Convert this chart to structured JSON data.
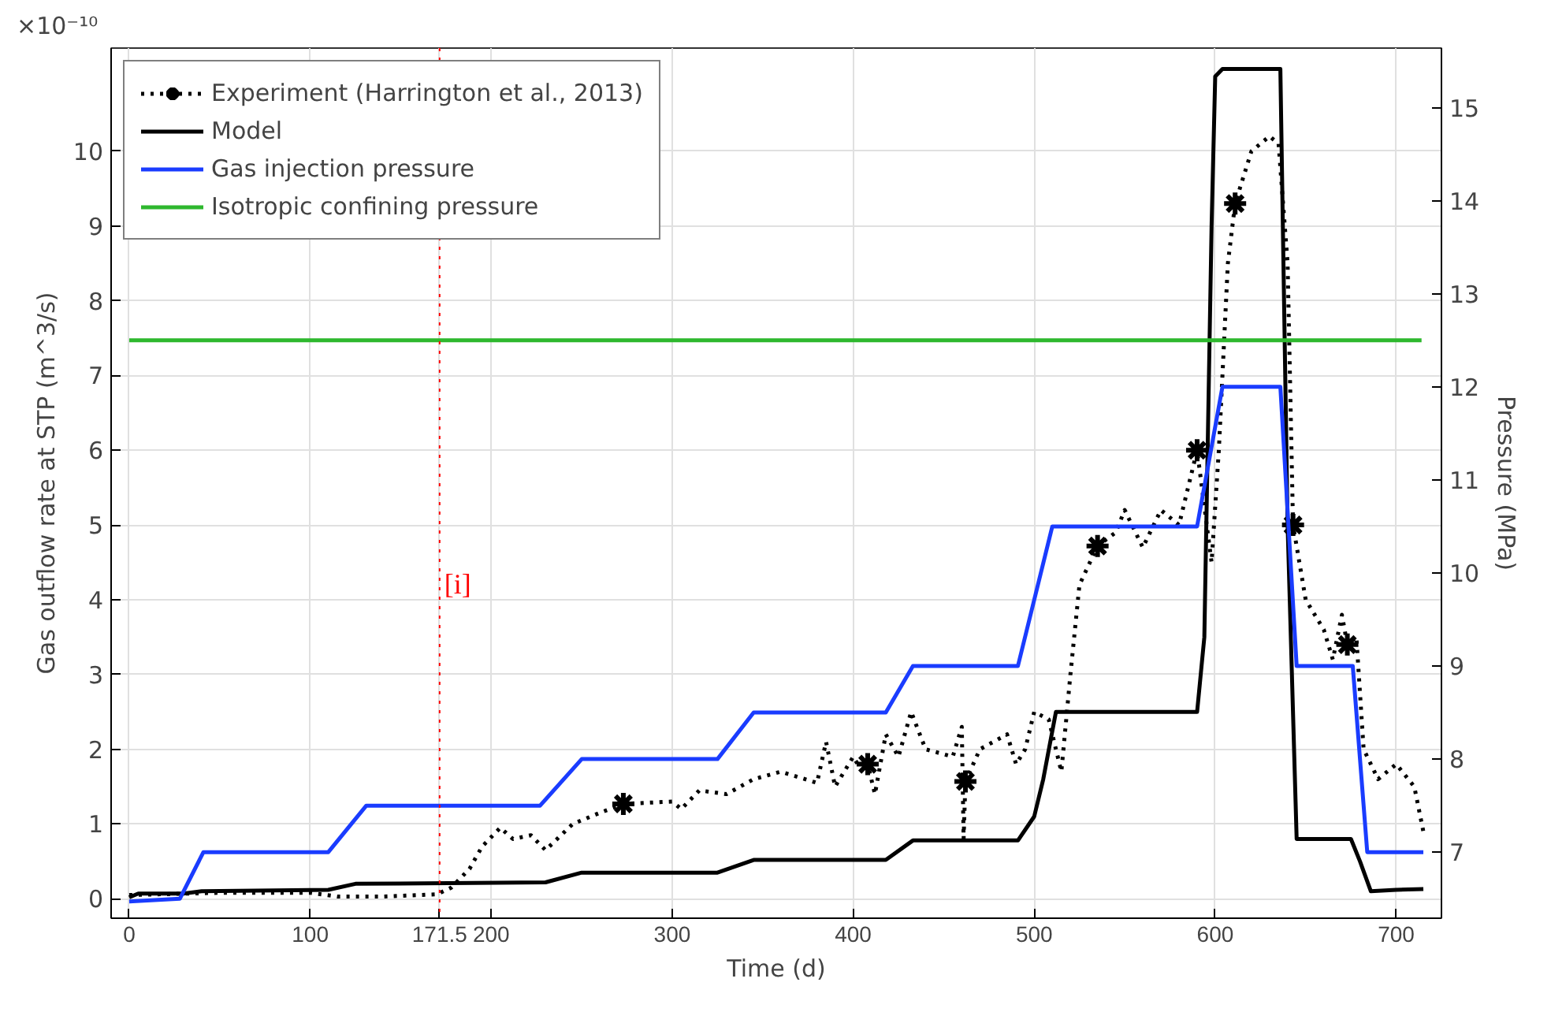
{
  "chart_data": {
    "type": "line",
    "xlabel": "Time (d)",
    "ylabel": "Gas outflow rate at STP (m^3/s)",
    "y2label": "Pressure (MPa)",
    "annotations": [
      "×10⁻¹⁰"
    ],
    "xlim": [
      -10,
      725
    ],
    "ylim": [
      -0.26,
      11.38
    ],
    "y2lim": [
      6.29,
      15.64
    ],
    "xticks": [
      0,
      100,
      {
        "value": 171.5,
        "label": "171.5"
      },
      200,
      300,
      400,
      500,
      600,
      700
    ],
    "yticks": [
      0,
      1,
      2,
      3,
      4,
      5,
      6,
      7,
      8,
      9,
      10
    ],
    "y2ticks": [
      7,
      8,
      9,
      10,
      11,
      12,
      13,
      14,
      15
    ],
    "grid": true,
    "legend": "top left",
    "ref_lines": [
      {
        "axis": "x",
        "value": 171.5,
        "label": "[i]",
        "color": "#ff0000",
        "line_style": "dotted"
      }
    ],
    "series": [
      {
        "name": "Experiment (Harrington et al., 2013)",
        "color": "#000000",
        "line_style": "dotted",
        "x": [
          0,
          50,
          100,
          115,
          140,
          170,
          178,
          188,
          195,
          205,
          212,
          222,
          230,
          245,
          260,
          273,
          300,
          305,
          315,
          330,
          345,
          360,
          380,
          385,
          390,
          400,
          405,
          408,
          412,
          418,
          425,
          432,
          440,
          455,
          460,
          461,
          462,
          470,
          485,
          490,
          495,
          500,
          508,
          515,
          520,
          525,
          535,
          545,
          550,
          560,
          570,
          580,
          590,
          598,
          602,
          607,
          611,
          620,
          630,
          635,
          640,
          643,
          650,
          660,
          665,
          670,
          673,
          678,
          682,
          690,
          700,
          710,
          715
        ],
        "values": [
          0.05,
          0.08,
          0.08,
          0.03,
          0.03,
          0.06,
          0.15,
          0.4,
          0.7,
          0.95,
          0.8,
          0.85,
          0.65,
          1.0,
          1.15,
          1.27,
          1.3,
          1.2,
          1.45,
          1.4,
          1.6,
          1.7,
          1.55,
          2.1,
          1.5,
          1.9,
          1.7,
          1.8,
          1.4,
          2.2,
          1.9,
          2.5,
          2.0,
          1.9,
          2.3,
          0.8,
          1.57,
          2.0,
          2.2,
          1.8,
          2.0,
          2.5,
          2.4,
          1.7,
          3.0,
          4.2,
          4.72,
          4.9,
          5.2,
          4.7,
          5.2,
          5.0,
          6.0,
          4.5,
          6.0,
          8.5,
          9.3,
          10.0,
          10.2,
          10.1,
          8.5,
          5.0,
          4.0,
          3.6,
          3.2,
          3.8,
          3.4,
          3.5,
          2.0,
          1.6,
          1.8,
          1.5,
          0.9
        ]
      },
      {
        "type": "scatter",
        "marker": "cross",
        "color": "#000000",
        "x": [
          273,
          408,
          462,
          535,
          590,
          611,
          643,
          673
        ],
        "values": [
          1.27,
          1.8,
          1.57,
          4.72,
          6.0,
          9.3,
          5.0,
          3.4
        ]
      },
      {
        "name": "Model",
        "color": "#000000",
        "line_style": "solid",
        "x": [
          0,
          5,
          30,
          40,
          110,
          125,
          230,
          250,
          325,
          345,
          400,
          418,
          433,
          491,
          500,
          505,
          512,
          590,
          594,
          598,
          600,
          604,
          636,
          640,
          645,
          675,
          680,
          686,
          700,
          715
        ],
        "values": [
          0.02,
          0.07,
          0.07,
          0.1,
          0.12,
          0.2,
          0.22,
          0.35,
          0.35,
          0.52,
          0.52,
          0.52,
          0.78,
          0.78,
          1.1,
          1.6,
          2.5,
          2.5,
          3.5,
          9.0,
          11.0,
          11.1,
          11.1,
          5.0,
          0.8,
          0.8,
          0.5,
          0.1,
          0.12,
          0.13
        ]
      },
      {
        "name": "Gas injection pressure",
        "color": "#1a3cff",
        "line_style": "solid",
        "axis": "y2",
        "x": [
          0,
          28,
          41,
          110,
          131,
          227,
          250,
          325,
          345,
          418,
          433,
          491,
          510,
          590,
          604,
          636,
          645,
          676,
          684,
          715
        ],
        "values": [
          6.47,
          6.5,
          7.0,
          7.0,
          7.5,
          7.5,
          8.0,
          8.0,
          8.5,
          8.5,
          9.0,
          9.0,
          10.5,
          10.5,
          12.0,
          12.0,
          9.0,
          9.0,
          7.0,
          7.0
        ]
      },
      {
        "name": "Isotropic confining pressure",
        "color": "#2eb82e",
        "line_style": "solid",
        "axis": "y2",
        "x": [
          0,
          714
        ],
        "values": [
          12.5,
          12.5
        ]
      }
    ]
  }
}
